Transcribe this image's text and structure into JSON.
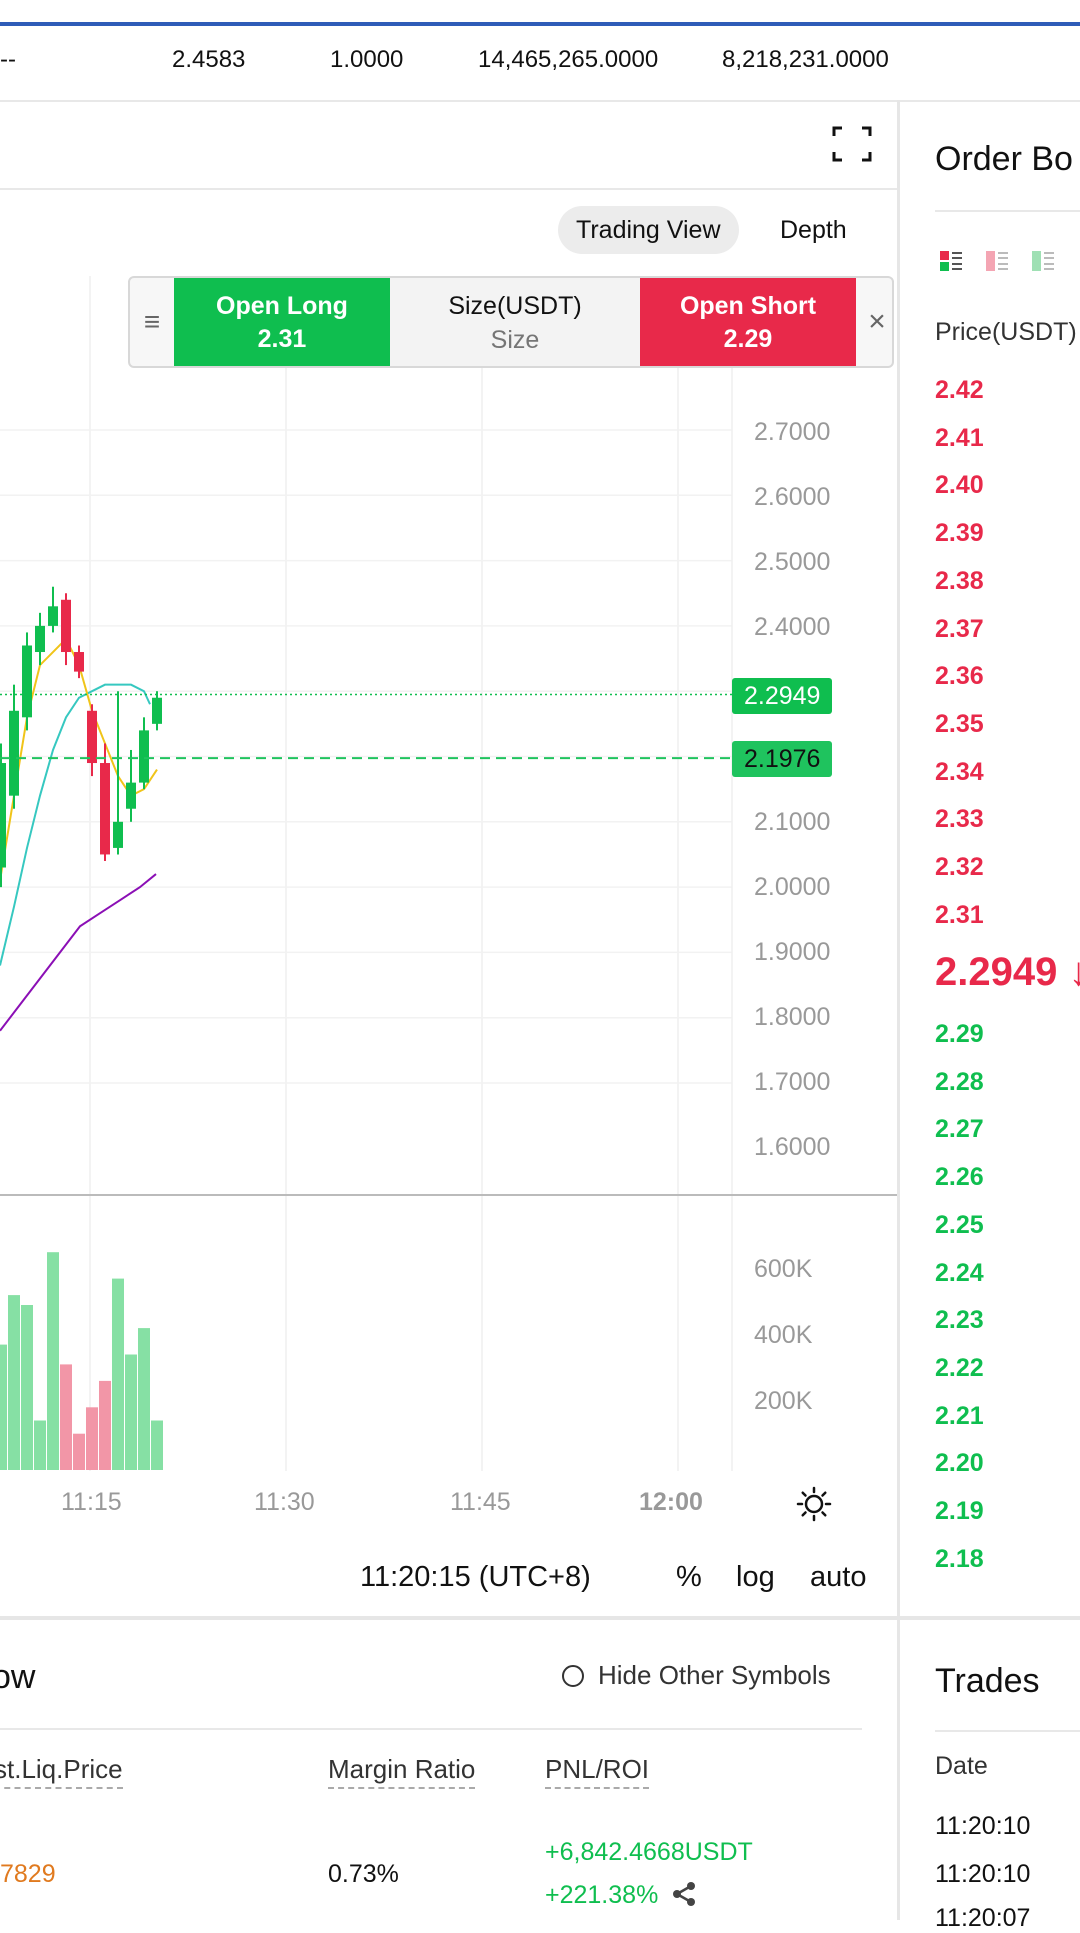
{
  "stats_row": [
    "--",
    "2.4583",
    "1.0000",
    "14,465,265.0000",
    "8,218,231.0000"
  ],
  "chart": {
    "tabs": [
      {
        "label": "Trading View",
        "active": true
      },
      {
        "label": "Depth",
        "active": false
      }
    ],
    "trade_bar": {
      "open_long_label": "Open Long",
      "open_long_price": "2.31",
      "size_label": "Size(USDT)",
      "size_placeholder": "Size",
      "open_short_label": "Open Short",
      "open_short_price": "2.29"
    },
    "price_axis": [
      "2.7000",
      "2.6000",
      "2.5000",
      "2.4000",
      "2.1000",
      "2.0000",
      "1.9000",
      "1.8000",
      "1.7000",
      "1.6000"
    ],
    "last_price_tag": "2.2949",
    "mark_price_tag": "2.1976",
    "volume_axis": [
      "600K",
      "400K",
      "200K"
    ],
    "time_axis": [
      "11:15",
      "11:30",
      "11:45",
      "12:00"
    ],
    "clock": "11:20:15 (UTC+8)",
    "controls": [
      "%",
      "log",
      "auto"
    ],
    "colors": {
      "up": "#0fbe4f",
      "down": "#e8294a",
      "ma_yellow": "#f0c419",
      "ma_teal": "#36c8c0",
      "ma_purple": "#8b0fb5"
    },
    "candles": [
      {
        "o": 2.03,
        "c": 2.19,
        "h": 2.22,
        "l": 2.0
      },
      {
        "o": 2.14,
        "c": 2.27,
        "h": 2.31,
        "l": 2.12
      },
      {
        "o": 2.26,
        "c": 2.37,
        "h": 2.39,
        "l": 2.24
      },
      {
        "o": 2.36,
        "c": 2.4,
        "h": 2.42,
        "l": 2.34
      },
      {
        "o": 2.4,
        "c": 2.43,
        "h": 2.46,
        "l": 2.39
      },
      {
        "o": 2.44,
        "c": 2.36,
        "h": 2.45,
        "l": 2.34
      },
      {
        "o": 2.36,
        "c": 2.33,
        "h": 2.37,
        "l": 2.32
      },
      {
        "o": 2.27,
        "c": 2.19,
        "h": 2.28,
        "l": 2.17
      },
      {
        "o": 2.19,
        "c": 2.05,
        "h": 2.22,
        "l": 2.04
      },
      {
        "o": 2.06,
        "c": 2.1,
        "h": 2.3,
        "l": 2.05
      },
      {
        "o": 2.12,
        "c": 2.16,
        "h": 2.21,
        "l": 2.1
      },
      {
        "o": 2.16,
        "c": 2.24,
        "h": 2.26,
        "l": 2.15
      },
      {
        "o": 2.25,
        "c": 2.29,
        "h": 2.3,
        "l": 2.24
      }
    ],
    "volumes": [
      {
        "v": 380,
        "up": true
      },
      {
        "v": 530,
        "up": true
      },
      {
        "v": 500,
        "up": true
      },
      {
        "v": 150,
        "up": true
      },
      {
        "v": 660,
        "up": true
      },
      {
        "v": 320,
        "up": false
      },
      {
        "v": 110,
        "up": false
      },
      {
        "v": 190,
        "up": false
      },
      {
        "v": 270,
        "up": false
      },
      {
        "v": 580,
        "up": true
      },
      {
        "v": 350,
        "up": true
      },
      {
        "v": 430,
        "up": true
      },
      {
        "v": 150,
        "up": true
      }
    ]
  },
  "order_book": {
    "title": "Order Bo",
    "price_header": "Price(USDT)",
    "asks": [
      "2.42",
      "2.41",
      "2.40",
      "2.39",
      "2.38",
      "2.37",
      "2.36",
      "2.35",
      "2.34",
      "2.33",
      "2.32",
      "2.31"
    ],
    "last_price": "2.2949 ↓",
    "bids": [
      "2.29",
      "2.28",
      "2.27",
      "2.26",
      "2.25",
      "2.24",
      "2.23",
      "2.22",
      "2.21",
      "2.20",
      "2.19",
      "2.18"
    ]
  },
  "positions": {
    "title": "ow",
    "hide_other_label": "Hide Other Symbols",
    "columns": [
      "st.Liq.Price",
      "Margin Ratio",
      "PNL/ROI"
    ],
    "row": {
      "liq_price": "7829",
      "margin_ratio": "0.73%",
      "pnl": "+6,842.4668USDT",
      "roi": "+221.38%"
    }
  },
  "trades": {
    "title": "Trades",
    "date_header": "Date",
    "times": [
      "11:20:10",
      "11:20:10",
      "11:20:07"
    ]
  }
}
